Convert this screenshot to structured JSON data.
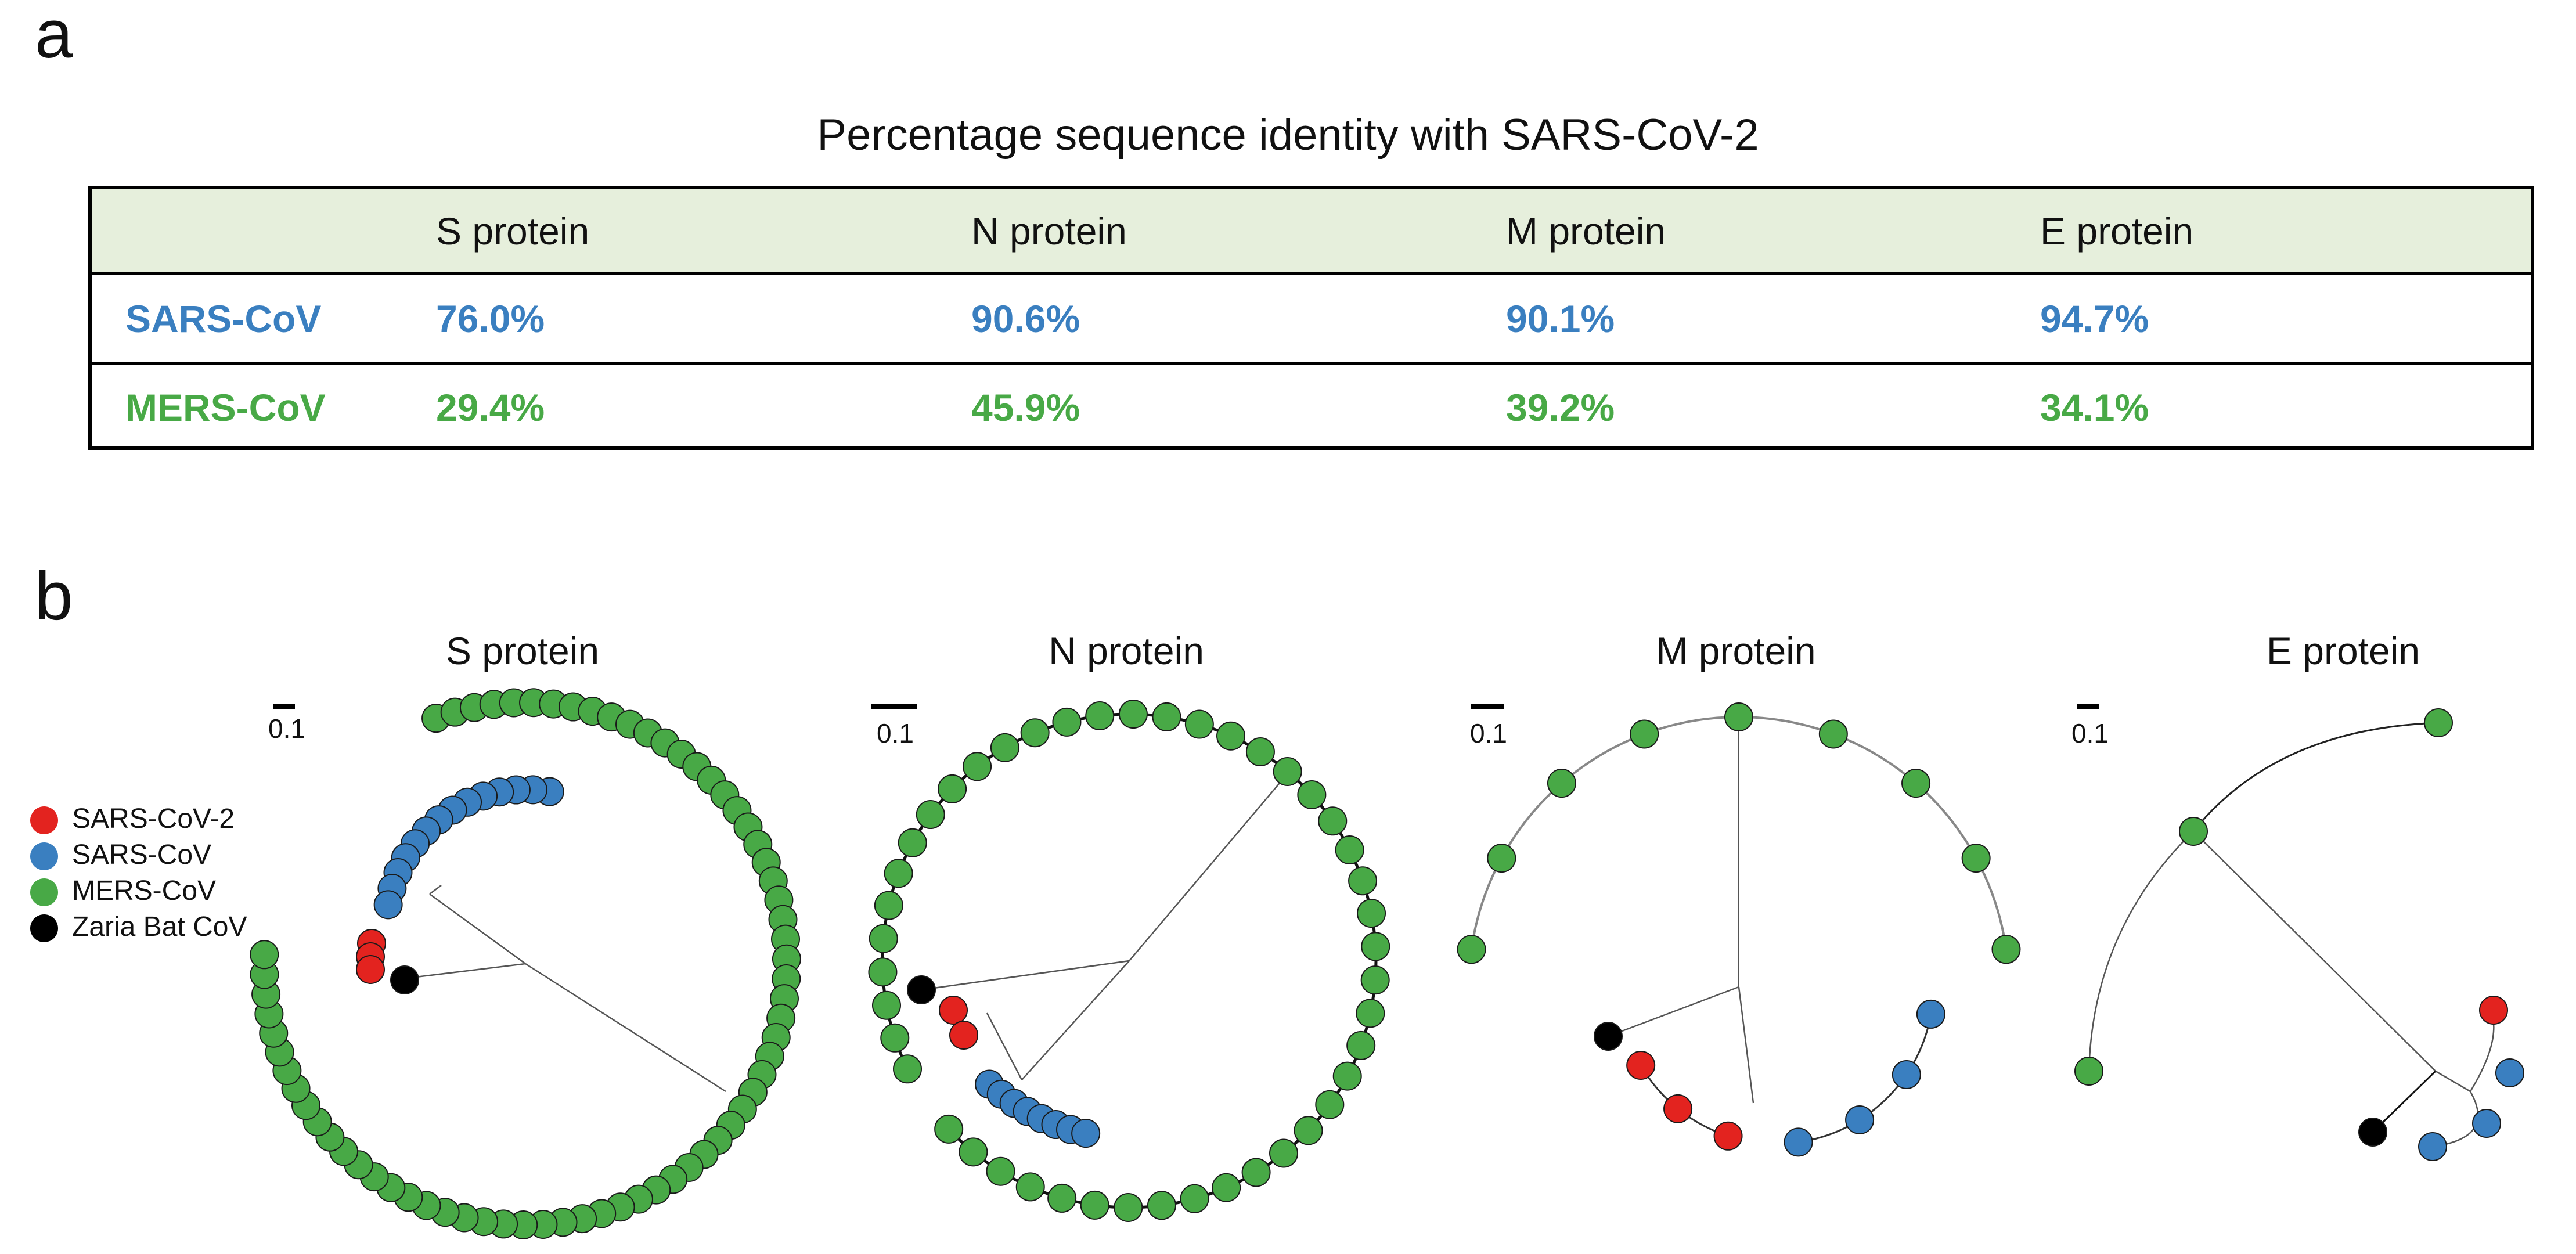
{
  "panel_a": {
    "letter": "a",
    "table_title": "Percentage sequence identity with SARS-CoV-2",
    "columns": [
      "",
      "S protein",
      "N protein",
      "M protein",
      "E protein"
    ],
    "rows": [
      {
        "name": "SARS-CoV",
        "values": [
          "76.0%",
          "90.6%",
          "90.1%",
          "94.7%"
        ]
      },
      {
        "name": "MERS-CoV",
        "values": [
          "29.4%",
          "45.9%",
          "39.2%",
          "34.1%"
        ]
      }
    ],
    "colors": {
      "header_bg": "#e6efdc",
      "sars": "#3a7fc0",
      "mers": "#48a946"
    }
  },
  "panel_b": {
    "letter": "b",
    "legend": [
      {
        "label": "SARS-CoV-2",
        "color": "#e3231f"
      },
      {
        "label": "SARS-CoV",
        "color": "#3a7fc0"
      },
      {
        "label": "MERS-CoV",
        "color": "#48a946"
      },
      {
        "label": "Zaria Bat CoV",
        "color": "#000000"
      }
    ],
    "trees": [
      {
        "title": "S protein",
        "scale_label": "0.1"
      },
      {
        "title": "N protein",
        "scale_label": "0.1"
      },
      {
        "title": "M protein",
        "scale_label": "0.1"
      },
      {
        "title": "E protein",
        "scale_label": "0.1"
      }
    ]
  }
}
